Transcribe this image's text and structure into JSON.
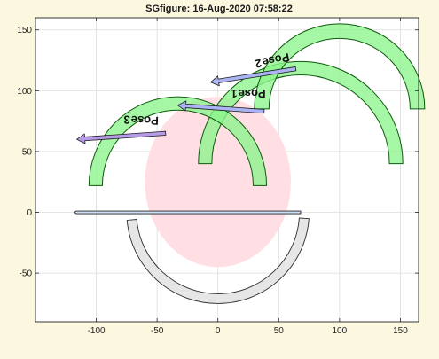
{
  "window": {
    "title": "SGfigure: 16-Aug-2020 07:58:22",
    "background": "#fcf8e0"
  },
  "chart_data": {
    "type": "scatter",
    "title": "SGfigure: 16-Aug-2020 07:58:22",
    "xlabel": "",
    "ylabel": "",
    "xlim": [
      -150,
      165
    ],
    "ylim": [
      -90,
      160
    ],
    "xticks": [
      -100,
      -50,
      0,
      50,
      100,
      150
    ],
    "yticks": [
      -50,
      0,
      50,
      100,
      150
    ],
    "grid": true,
    "colors": {
      "disk": "#ffdfe3",
      "arm_fill": "#ccdff6",
      "base_arc_fill": "#e6e6e6",
      "green_arc_fill": "#8cf58c",
      "green_arc_edge": "#0f5a0f",
      "arrow_fill_light": "#aab4f2",
      "arrow_fill_dark": "#b79ae8"
    },
    "shapes": {
      "disk": {
        "center": [
          0,
          25
        ],
        "rx": 60,
        "ry": 70
      },
      "base_arc": {
        "center": [
          0,
          0
        ],
        "r_outer": 75,
        "r_inner": 67
      },
      "arm": {
        "from": [
          -118,
          0
        ],
        "to": [
          68,
          0
        ],
        "width": 3
      },
      "arcs": [
        {
          "name": "arc-pose-1",
          "center": [
            68,
            40
          ],
          "r_outer": 84,
          "r_inner": 73
        },
        {
          "name": "arc-pose-2",
          "center": [
            100,
            85
          ],
          "r_outer": 70,
          "r_inner": 58
        },
        {
          "name": "arc-pose-3",
          "center": [
            -33,
            22
          ],
          "r_outer": 73,
          "r_inner": 62
        }
      ]
    },
    "arrows": [
      {
        "name": "arrow-pose-1",
        "from": [
          38,
          83
        ],
        "to": [
          -33,
          88
        ],
        "shade": "light"
      },
      {
        "name": "arrow-pose-2",
        "from": [
          64,
          118
        ],
        "to": [
          -6,
          107
        ],
        "shade": "light"
      },
      {
        "name": "arrow-pose-3",
        "from": [
          -43,
          65
        ],
        "to": [
          -116,
          60
        ],
        "shade": "dark"
      }
    ],
    "annotations": [
      {
        "text": "Pose",
        "digit": "1",
        "x": 25,
        "y": 101,
        "rotation": 180
      },
      {
        "text": "Pose",
        "digit": "2",
        "x": 44,
        "y": 128,
        "rotation": 168
      },
      {
        "text": "Pose",
        "digit": "3",
        "x": -63,
        "y": 79,
        "rotation": 182
      }
    ]
  }
}
